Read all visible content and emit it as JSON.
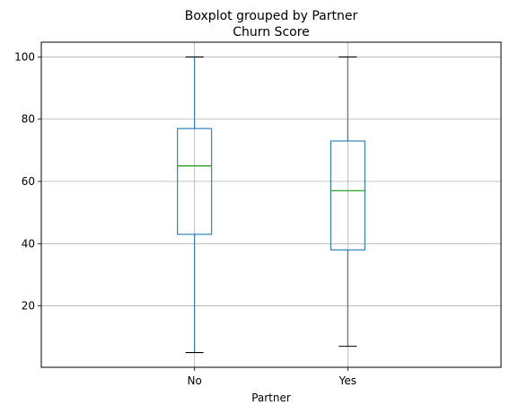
{
  "chart_data": {
    "type": "boxplot",
    "title": "Boxplot grouped by Partner",
    "subtitle": "Churn Score",
    "xlabel": "Partner",
    "ylabel": "",
    "categories": [
      "No",
      "Yes"
    ],
    "boxes": [
      {
        "category": "No",
        "whisker_low": 5,
        "q1": 43,
        "median": 65,
        "q3": 77,
        "whisker_high": 100
      },
      {
        "category": "Yes",
        "whisker_low": 7,
        "q1": 38,
        "median": 57,
        "q3": 73,
        "whisker_high": 100
      }
    ],
    "yticks": [
      20,
      40,
      60,
      80,
      100
    ],
    "ylim": [
      0.25,
      104.75
    ],
    "grid": true,
    "colors": {
      "box": "#1f77b4",
      "median": "#2ca02c",
      "whisker_cap": "#000000",
      "grid": "#b0b0b0"
    }
  }
}
